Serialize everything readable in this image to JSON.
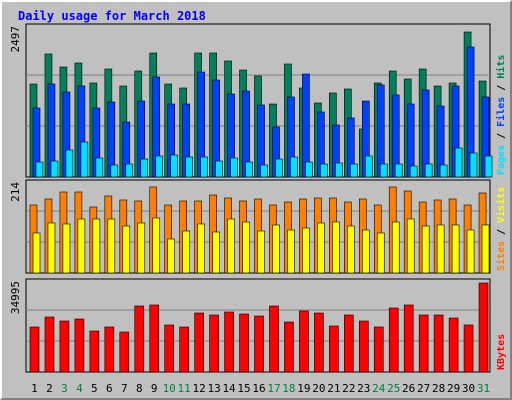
{
  "chart_data": {
    "type": "bar",
    "title": "Daily usage for March 2018",
    "categories": [
      "1",
      "2",
      "3",
      "4",
      "5",
      "6",
      "7",
      "8",
      "9",
      "10",
      "11",
      "12",
      "13",
      "14",
      "15",
      "16",
      "17",
      "18",
      "19",
      "20",
      "21",
      "22",
      "23",
      "24",
      "25",
      "26",
      "27",
      "28",
      "29",
      "30",
      "31"
    ],
    "weekend_days": [
      "3",
      "4",
      "10",
      "11",
      "17",
      "18",
      "24",
      "25",
      "31"
    ],
    "colors": {
      "title": "#0000ff",
      "day_label": "#000000",
      "weekend_label": "#008040",
      "hits": "#00805c",
      "files": "#0040ff",
      "pages": "#00e0ff",
      "visits": "#ffff00",
      "sites": "#ff8000",
      "kbytes": "#ff0000",
      "plot_bg": "#c0c0c0"
    },
    "panels": [
      {
        "id": "hits_files_pages",
        "ymax_label": "2497",
        "ylim": [
          0,
          2497
        ],
        "labels": [
          {
            "text": "Pages",
            "color": "#00e0ff"
          },
          {
            "text": " / ",
            "color": "#000000"
          },
          {
            "text": "Files",
            "color": "#0040ff"
          },
          {
            "text": " / ",
            "color": "#000000"
          },
          {
            "text": "Hits",
            "color": "#00805c"
          }
        ],
        "series": [
          {
            "name": "Hits",
            "color": "#00805c",
            "values": [
              1530,
              2035,
              1815,
              1890,
              1550,
              1785,
              1505,
              1750,
              2055,
              1530,
              1465,
              2045,
              2045,
              1925,
              1775,
              1675,
              1200,
              1870,
              1470,
              1225,
              1385,
              1460,
              800,
              1550,
              1750,
              1615,
              1780,
              1510,
              1550,
              2395,
              1580
            ]
          },
          {
            "name": "Files",
            "color": "#0040ff",
            "values": [
              1140,
              1535,
              1400,
              1500,
              1135,
              1245,
              915,
              1250,
              1650,
              1205,
              1205,
              1730,
              1605,
              1365,
              1415,
              1185,
              825,
              1320,
              1705,
              1070,
              865,
              970,
              1260,
              1520,
              1360,
              1215,
              1445,
              1180,
              1505,
              2155,
              1315
            ]
          },
          {
            "name": "Pages",
            "color": "#00e0ff",
            "values": [
              250,
              260,
              440,
              580,
              310,
              200,
              220,
              300,
              350,
              370,
              330,
              330,
              260,
              320,
              240,
              200,
              290,
              330,
              240,
              210,
              230,
              220,
              350,
              220,
              220,
              190,
              210,
              200,
              480,
              390,
              350
            ]
          }
        ]
      },
      {
        "id": "sites_visits",
        "ymax_label": "214",
        "ylim": [
          0,
          214
        ],
        "labels": [
          {
            "text": "Sites",
            "color": "#ff8000"
          },
          {
            "text": " / ",
            "color": "#000000"
          },
          {
            "text": "Visits",
            "color": "#ffff00"
          }
        ],
        "series": [
          {
            "name": "Sites",
            "color": "#ff8000",
            "values": [
              160,
              175,
              191,
              190,
              155,
              180,
              172,
              170,
              202,
              160,
              170,
              170,
              183,
              176,
              170,
              174,
              160,
              168,
              175,
              177,
              177,
              167,
              173,
              161,
              202,
              194,
              168,
              171,
              174,
              160,
              189
            ]
          },
          {
            "name": "Visits",
            "color": "#ffff00",
            "values": [
              94,
              118,
              115,
              127,
              128,
              128,
              110,
              118,
              129,
              79,
              98,
              115,
              96,
              126,
              121,
              98,
              112,
              102,
              105,
              118,
              119,
              110,
              102,
              93,
              121,
              128,
              110,
              114,
              112,
              101,
              113
            ]
          }
        ]
      },
      {
        "id": "kbytes",
        "ymax_label": "34995",
        "ylim": [
          0,
          34995
        ],
        "labels": [
          {
            "text": "KBytes",
            "color": "#ff0000"
          }
        ],
        "series": [
          {
            "name": "KBytes",
            "color": "#ff0000",
            "values": [
              17250,
              21300,
              19800,
              20500,
              15850,
              17400,
              15300,
              25500,
              25900,
              18200,
              17200,
              22700,
              21900,
              23000,
              22400,
              21500,
              25200,
              19200,
              23300,
              22600,
              17700,
              21800,
              19700,
              17200,
              24500,
              25900,
              21900,
              22000,
              20900,
              17900,
              34200
            ]
          }
        ]
      }
    ]
  }
}
